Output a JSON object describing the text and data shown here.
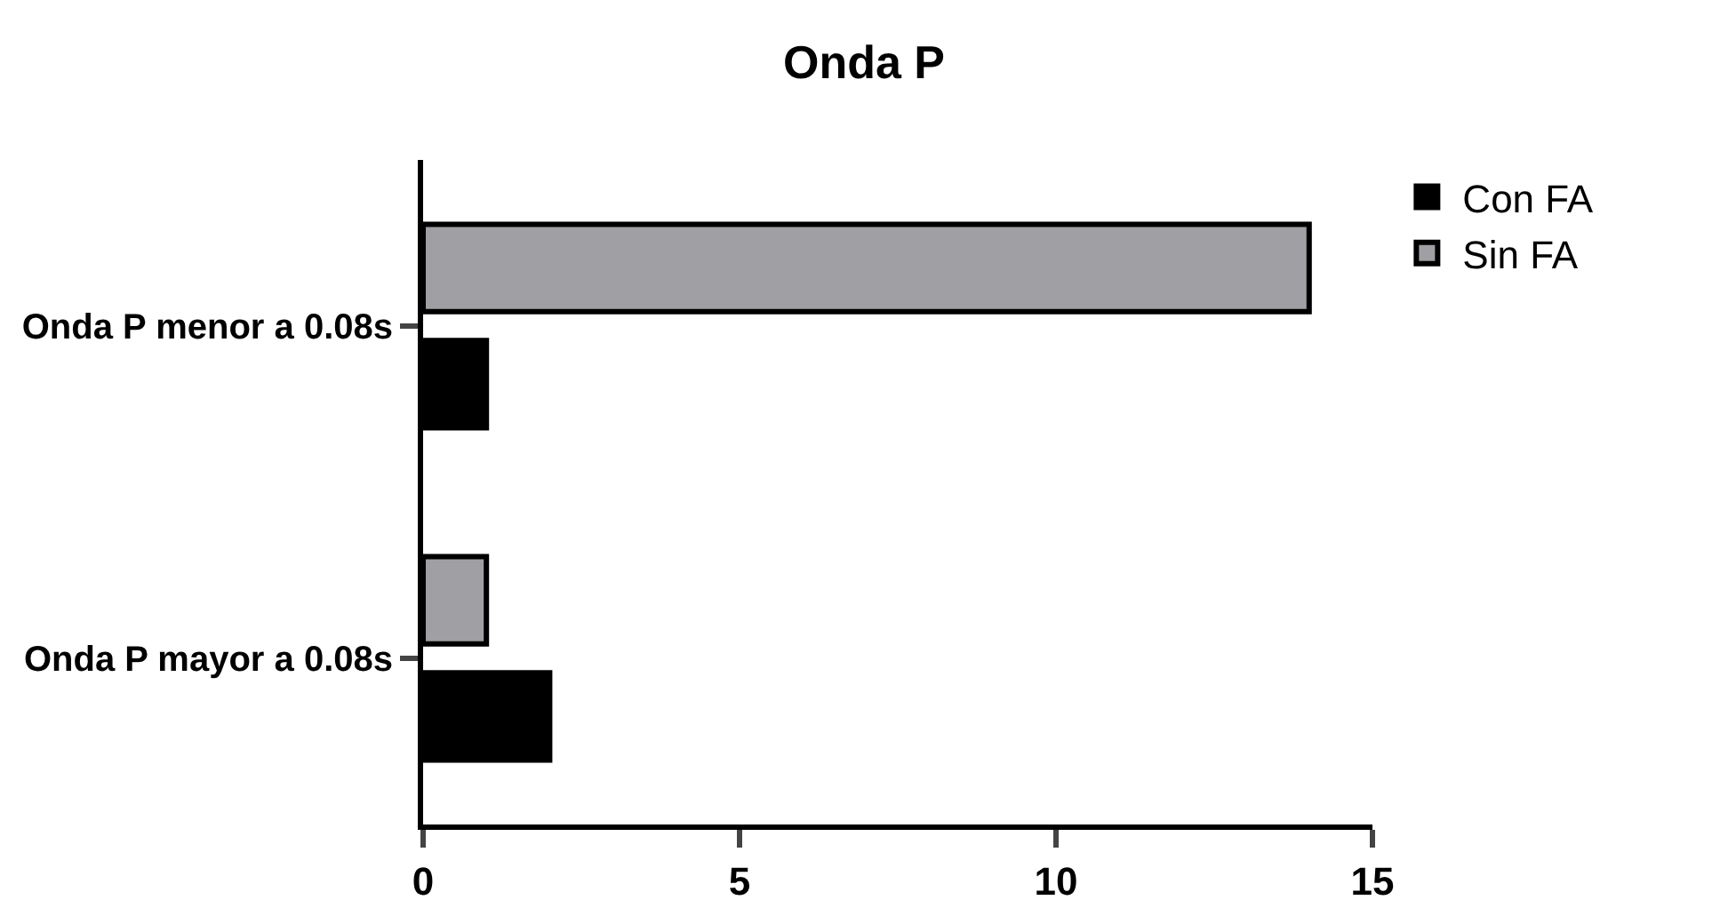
{
  "chart_data": {
    "type": "bar",
    "title": "Onda P",
    "orientation": "horizontal",
    "categories": [
      "Onda P menor a 0.08s",
      "Onda P mayor a 0.08s"
    ],
    "series": [
      {
        "name": "Con FA",
        "color": "#000000",
        "values": [
          1,
          2
        ]
      },
      {
        "name": "Sin FA",
        "color": "#a0a0a4",
        "values": [
          14,
          1
        ]
      }
    ],
    "xlim": [
      0,
      15
    ],
    "xticks": [
      0,
      5,
      10,
      15
    ],
    "legend": "top right"
  }
}
